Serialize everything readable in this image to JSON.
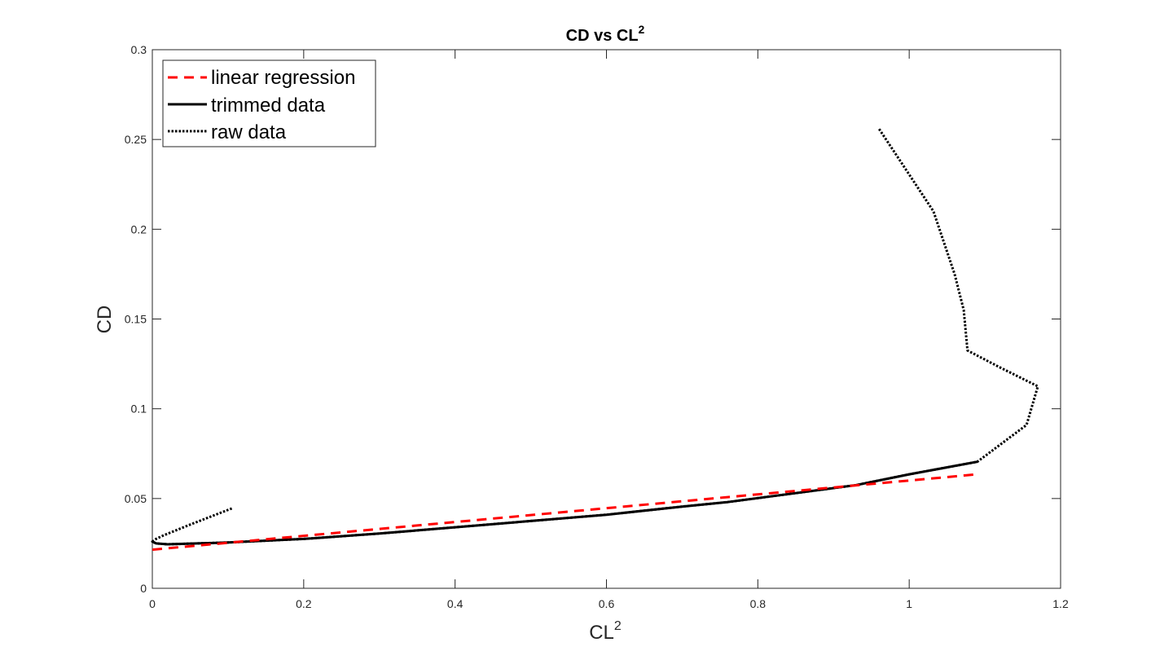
{
  "chart_data": {
    "type": "line",
    "title": "CD vs CL",
    "title_sup": "2",
    "xlabel": "CL",
    "xlabel_sup": "2",
    "ylabel": "CD",
    "xlim": [
      0,
      1.2
    ],
    "ylim": [
      0,
      0.3
    ],
    "xticks": [
      0,
      0.2,
      0.4,
      0.6,
      0.8,
      1,
      1.2
    ],
    "xtick_labels": [
      "0",
      "0.2",
      "0.4",
      "0.6",
      "0.8",
      "1",
      "1.2"
    ],
    "yticks": [
      0,
      0.05,
      0.1,
      0.15,
      0.2,
      0.25,
      0.3
    ],
    "ytick_labels": [
      "0",
      "0.05",
      "0.1",
      "0.15",
      "0.2",
      "0.25",
      "0.3"
    ],
    "grid": false,
    "legend_position": "top-left",
    "series": [
      {
        "name": "linear regression",
        "style": "dashed",
        "color": "#ff0000",
        "x": [
          0.0,
          1.09
        ],
        "y": [
          0.0215,
          0.0635
        ]
      },
      {
        "name": "trimmed data",
        "style": "solid",
        "color": "#000000",
        "x": [
          0.0,
          0.005,
          0.02,
          0.1,
          0.2,
          0.3,
          0.4,
          0.5,
          0.6,
          0.7,
          0.76,
          0.85,
          0.93,
          1.0,
          1.09
        ],
        "y": [
          0.026,
          0.025,
          0.0245,
          0.0255,
          0.0275,
          0.0305,
          0.034,
          0.0375,
          0.041,
          0.0455,
          0.048,
          0.053,
          0.0575,
          0.0635,
          0.0705
        ]
      },
      {
        "name": "raw data",
        "style": "dotted",
        "color": "#000000",
        "x": [
          0.105,
          0.05,
          0.015,
          0.005,
          0.0,
          0.005,
          0.02,
          0.1,
          0.2,
          0.3,
          0.4,
          0.5,
          0.6,
          0.7,
          0.76,
          0.85,
          0.93,
          1.0,
          1.09,
          1.155,
          1.17,
          1.12,
          1.077,
          1.072,
          1.06,
          1.032,
          0.96
        ],
        "y": [
          0.0445,
          0.0355,
          0.0295,
          0.0275,
          0.026,
          0.025,
          0.0245,
          0.0255,
          0.0275,
          0.0305,
          0.034,
          0.0375,
          0.041,
          0.0455,
          0.048,
          0.053,
          0.0575,
          0.0635,
          0.0705,
          0.091,
          0.1125,
          0.123,
          0.1325,
          0.155,
          0.175,
          0.21,
          0.256
        ]
      }
    ]
  }
}
